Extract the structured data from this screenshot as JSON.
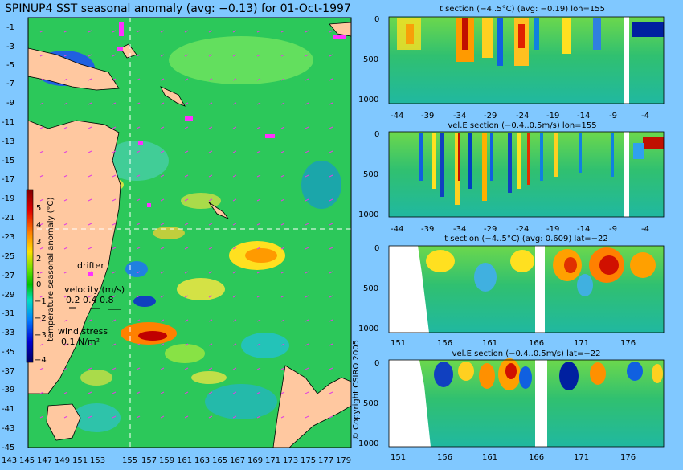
{
  "title": "SPINUP4 SST seasonal anomaly (avg: −0.13) for 01-Oct-1997",
  "map": {
    "lat_labels": [
      "-1",
      "-3",
      "-5",
      "-7",
      "-9",
      "-11",
      "-13",
      "-15",
      "-17",
      "-19",
      "-21",
      "-23",
      "-25",
      "-27",
      "-29",
      "-31",
      "-33",
      "-35",
      "-37",
      "-39",
      "-41",
      "-43",
      "-45"
    ],
    "lon_labels": [
      "143",
      "145",
      "147",
      "149",
      "151",
      "153",
      "155",
      "157",
      "159",
      "161",
      "163",
      "165",
      "167",
      "169",
      "171",
      "173",
      "175",
      "177",
      "179"
    ],
    "colorbar": {
      "ticks": [
        "5",
        "4",
        "3",
        "2",
        "1",
        "0",
        "−1",
        "−2",
        "−3",
        "−4"
      ],
      "label": "temperature seasonal anomaly (°C)"
    },
    "drifter_label": "drifter",
    "velocity_label": "velocity (m/s)",
    "velocity_values": "0.2 0.4 0.8",
    "wind_label": "wind stress",
    "wind_value": "0.1 N/m²",
    "crosshair": {
      "lon": 155,
      "lat": -22
    }
  },
  "copyright": "© Copyright CSIRO 2005",
  "panels": [
    {
      "title": "t section (−4..5°C) (avg: −0.19) lon=155",
      "x_labels": [
        "-44",
        "-39",
        "-34",
        "-29",
        "-24",
        "-19",
        "-14",
        "-9",
        "-4"
      ],
      "y_labels": [
        "0",
        "500",
        "1000"
      ]
    },
    {
      "title": "vel.E section (−0.4..0.5m/s) lon=155",
      "x_labels": [
        "-44",
        "-39",
        "-34",
        "-29",
        "-24",
        "-19",
        "-14",
        "-9",
        "-4"
      ],
      "y_labels": [
        "0",
        "500",
        "1000"
      ]
    },
    {
      "title": "t section (−4..5°C) (avg: 0.609) lat=−22",
      "x_labels": [
        "151",
        "156",
        "161",
        "166",
        "171",
        "176"
      ],
      "y_labels": [
        "0",
        "500",
        "1000"
      ]
    },
    {
      "title": "vel.E section (−0.4..0.5m/s) lat=−22",
      "x_labels": [
        "151",
        "156",
        "161",
        "166",
        "171",
        "176"
      ],
      "y_labels": [
        "0",
        "500",
        "1000"
      ]
    }
  ]
}
